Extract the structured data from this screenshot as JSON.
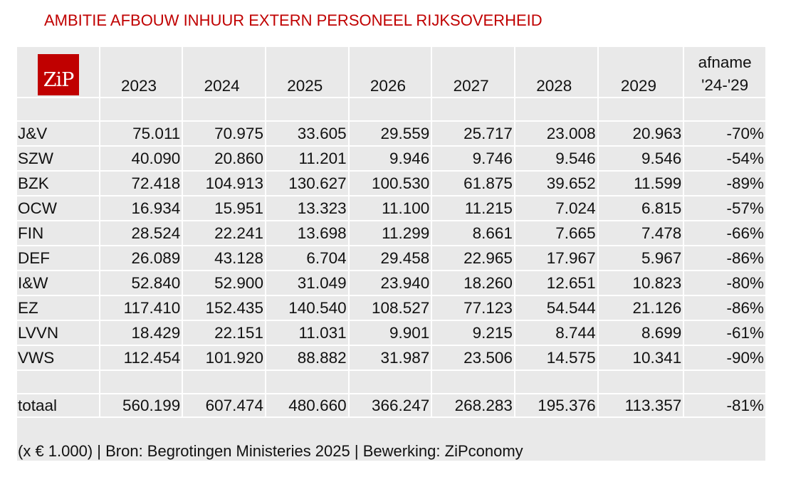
{
  "title": "AMBITIE AFBOUW INHUUR EXTERN PERSONEEL RIJKSOVERHEID",
  "logo_text": "ZiP",
  "header": {
    "years": [
      "2023",
      "2024",
      "2025",
      "2026",
      "2027",
      "2028",
      "2029"
    ],
    "change_line1": "afname",
    "change_line2": "'24-'29"
  },
  "rows": [
    {
      "label": "J&V",
      "values": [
        "75.011",
        "70.975",
        "33.605",
        "29.559",
        "25.717",
        "23.008",
        "20.963"
      ],
      "change": "-70%"
    },
    {
      "label": "SZW",
      "values": [
        "40.090",
        "20.860",
        "11.201",
        "9.946",
        "9.746",
        "9.546",
        "9.546"
      ],
      "change": "-54%"
    },
    {
      "label": "BZK",
      "values": [
        "72.418",
        "104.913",
        "130.627",
        "100.530",
        "61.875",
        "39.652",
        "11.599"
      ],
      "change": "-89%"
    },
    {
      "label": "OCW",
      "values": [
        "16.934",
        "15.951",
        "13.323",
        "11.100",
        "11.215",
        "7.024",
        "6.815"
      ],
      "change": "-57%"
    },
    {
      "label": "FIN",
      "values": [
        "28.524",
        "22.241",
        "13.698",
        "11.299",
        "8.661",
        "7.665",
        "7.478"
      ],
      "change": "-66%"
    },
    {
      "label": "DEF",
      "values": [
        "26.089",
        "43.128",
        "6.704",
        "29.458",
        "22.965",
        "17.967",
        "5.967"
      ],
      "change": "-86%"
    },
    {
      "label": "I&W",
      "values": [
        "52.840",
        "52.900",
        "31.049",
        "23.940",
        "18.260",
        "12.651",
        "10.823"
      ],
      "change": "-80%"
    },
    {
      "label": "EZ",
      "values": [
        "117.410",
        "152.435",
        "140.540",
        "108.527",
        "77.123",
        "54.544",
        "21.126"
      ],
      "change": "-86%"
    },
    {
      "label": "LVVN",
      "values": [
        "18.429",
        "22.151",
        "11.031",
        "9.901",
        "9.215",
        "8.744",
        "8.699"
      ],
      "change": "-61%"
    },
    {
      "label": "VWS",
      "values": [
        "112.454",
        "101.920",
        "88.882",
        "31.987",
        "23.506",
        "14.575",
        "10.341"
      ],
      "change": "-90%"
    }
  ],
  "total": {
    "label": "totaal",
    "values": [
      "560.199",
      "607.474",
      "480.660",
      "366.247",
      "268.283",
      "195.376",
      "113.357"
    ],
    "change": "-81%"
  },
  "footer": "(x € 1.000) | Bron: Begrotingen Ministeries 2025 | Bewerking: ZiPconomy",
  "colors": {
    "accent": "#c00000",
    "cell_background": "#e9e9e9"
  }
}
